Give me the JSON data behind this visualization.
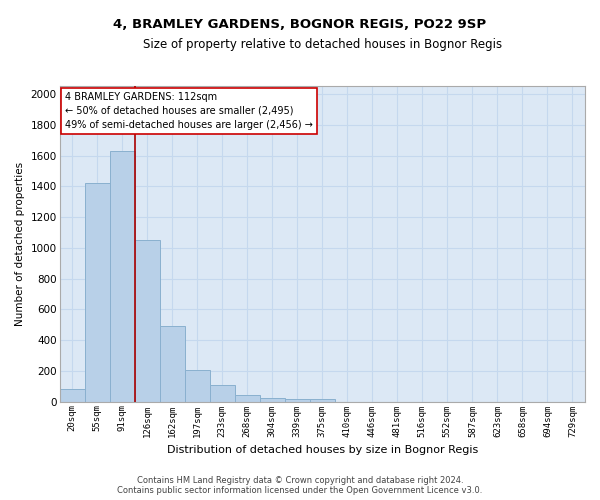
{
  "title": "4, BRAMLEY GARDENS, BOGNOR REGIS, PO22 9SP",
  "subtitle": "Size of property relative to detached houses in Bognor Regis",
  "xlabel": "Distribution of detached houses by size in Bognor Regis",
  "ylabel": "Number of detached properties",
  "categories": [
    "20sqm",
    "55sqm",
    "91sqm",
    "126sqm",
    "162sqm",
    "197sqm",
    "233sqm",
    "268sqm",
    "304sqm",
    "339sqm",
    "375sqm",
    "410sqm",
    "446sqm",
    "481sqm",
    "516sqm",
    "552sqm",
    "587sqm",
    "623sqm",
    "658sqm",
    "694sqm",
    "729sqm"
  ],
  "values": [
    80,
    1420,
    1630,
    1050,
    490,
    205,
    105,
    40,
    25,
    20,
    15,
    0,
    0,
    0,
    0,
    0,
    0,
    0,
    0,
    0,
    0
  ],
  "bar_color": "#b8d0e8",
  "bar_edge_color": "#8ab0cf",
  "vline_color": "#aa0000",
  "annotation_text": "4 BRAMLEY GARDENS: 112sqm\n← 50% of detached houses are smaller (2,495)\n49% of semi-detached houses are larger (2,456) →",
  "annotation_box_color": "#ffffff",
  "annotation_box_edge_color": "#cc0000",
  "ylim": [
    0,
    2050
  ],
  "yticks": [
    0,
    200,
    400,
    600,
    800,
    1000,
    1200,
    1400,
    1600,
    1800,
    2000
  ],
  "background_color": "#ffffff",
  "plot_bg_color": "#dce8f5",
  "grid_color": "#c5d8ee",
  "footer_line1": "Contains HM Land Registry data © Crown copyright and database right 2024.",
  "footer_line2": "Contains public sector information licensed under the Open Government Licence v3.0."
}
